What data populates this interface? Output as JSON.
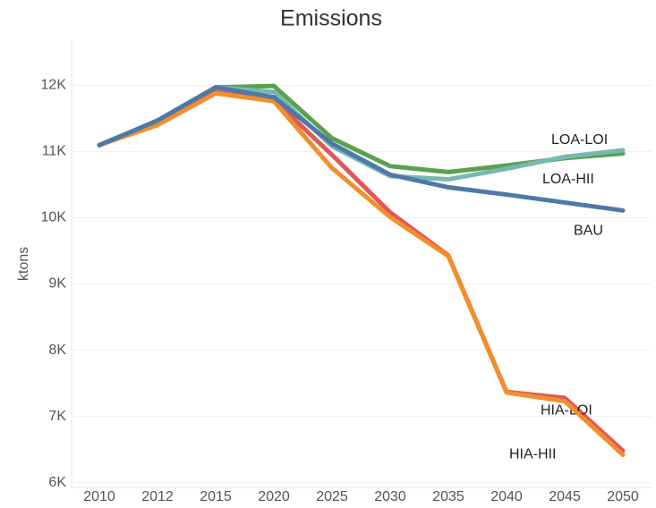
{
  "chart_data": {
    "type": "line",
    "title": "Emissions",
    "y_label": "ktons",
    "categories": [
      "2010",
      "2012",
      "2015",
      "2020",
      "2025",
      "2030",
      "2035",
      "2040",
      "2045",
      "2050"
    ],
    "ylim": [
      5900,
      12600
    ],
    "yticks": [
      {
        "value": 6000,
        "label": "6K"
      },
      {
        "value": 7000,
        "label": "7K"
      },
      {
        "value": 8000,
        "label": "8K"
      },
      {
        "value": 9000,
        "label": "9K"
      },
      {
        "value": 10000,
        "label": "10K"
      },
      {
        "value": 11000,
        "label": "11K"
      },
      {
        "value": 12000,
        "label": "12K"
      }
    ],
    "grid": true,
    "series": [
      {
        "name": "LOA-LOI",
        "color": "#59a14f",
        "values": [
          11100,
          11460,
          11970,
          11990,
          11200,
          10780,
          10690,
          10790,
          10900,
          10970
        ]
      },
      {
        "name": "LOA-HII",
        "color": "#76b7b2",
        "values": [
          11100,
          11460,
          11970,
          11900,
          11080,
          10630,
          10580,
          10740,
          10920,
          11020
        ]
      },
      {
        "name": "HIA-LOI",
        "color": "#e15759",
        "values": [
          11100,
          11420,
          11900,
          11780,
          10950,
          10080,
          9430,
          7370,
          7280,
          6480
        ]
      },
      {
        "name": "HIA-HII",
        "color": "#f28e2b",
        "values": [
          11100,
          11400,
          11880,
          11760,
          10750,
          10010,
          9420,
          7360,
          7230,
          6420
        ]
      },
      {
        "name": "BAU",
        "color": "#4e79a7",
        "values": [
          11095,
          11470,
          11970,
          11820,
          11120,
          10650,
          10460,
          10350,
          10230,
          10110
        ]
      }
    ]
  }
}
